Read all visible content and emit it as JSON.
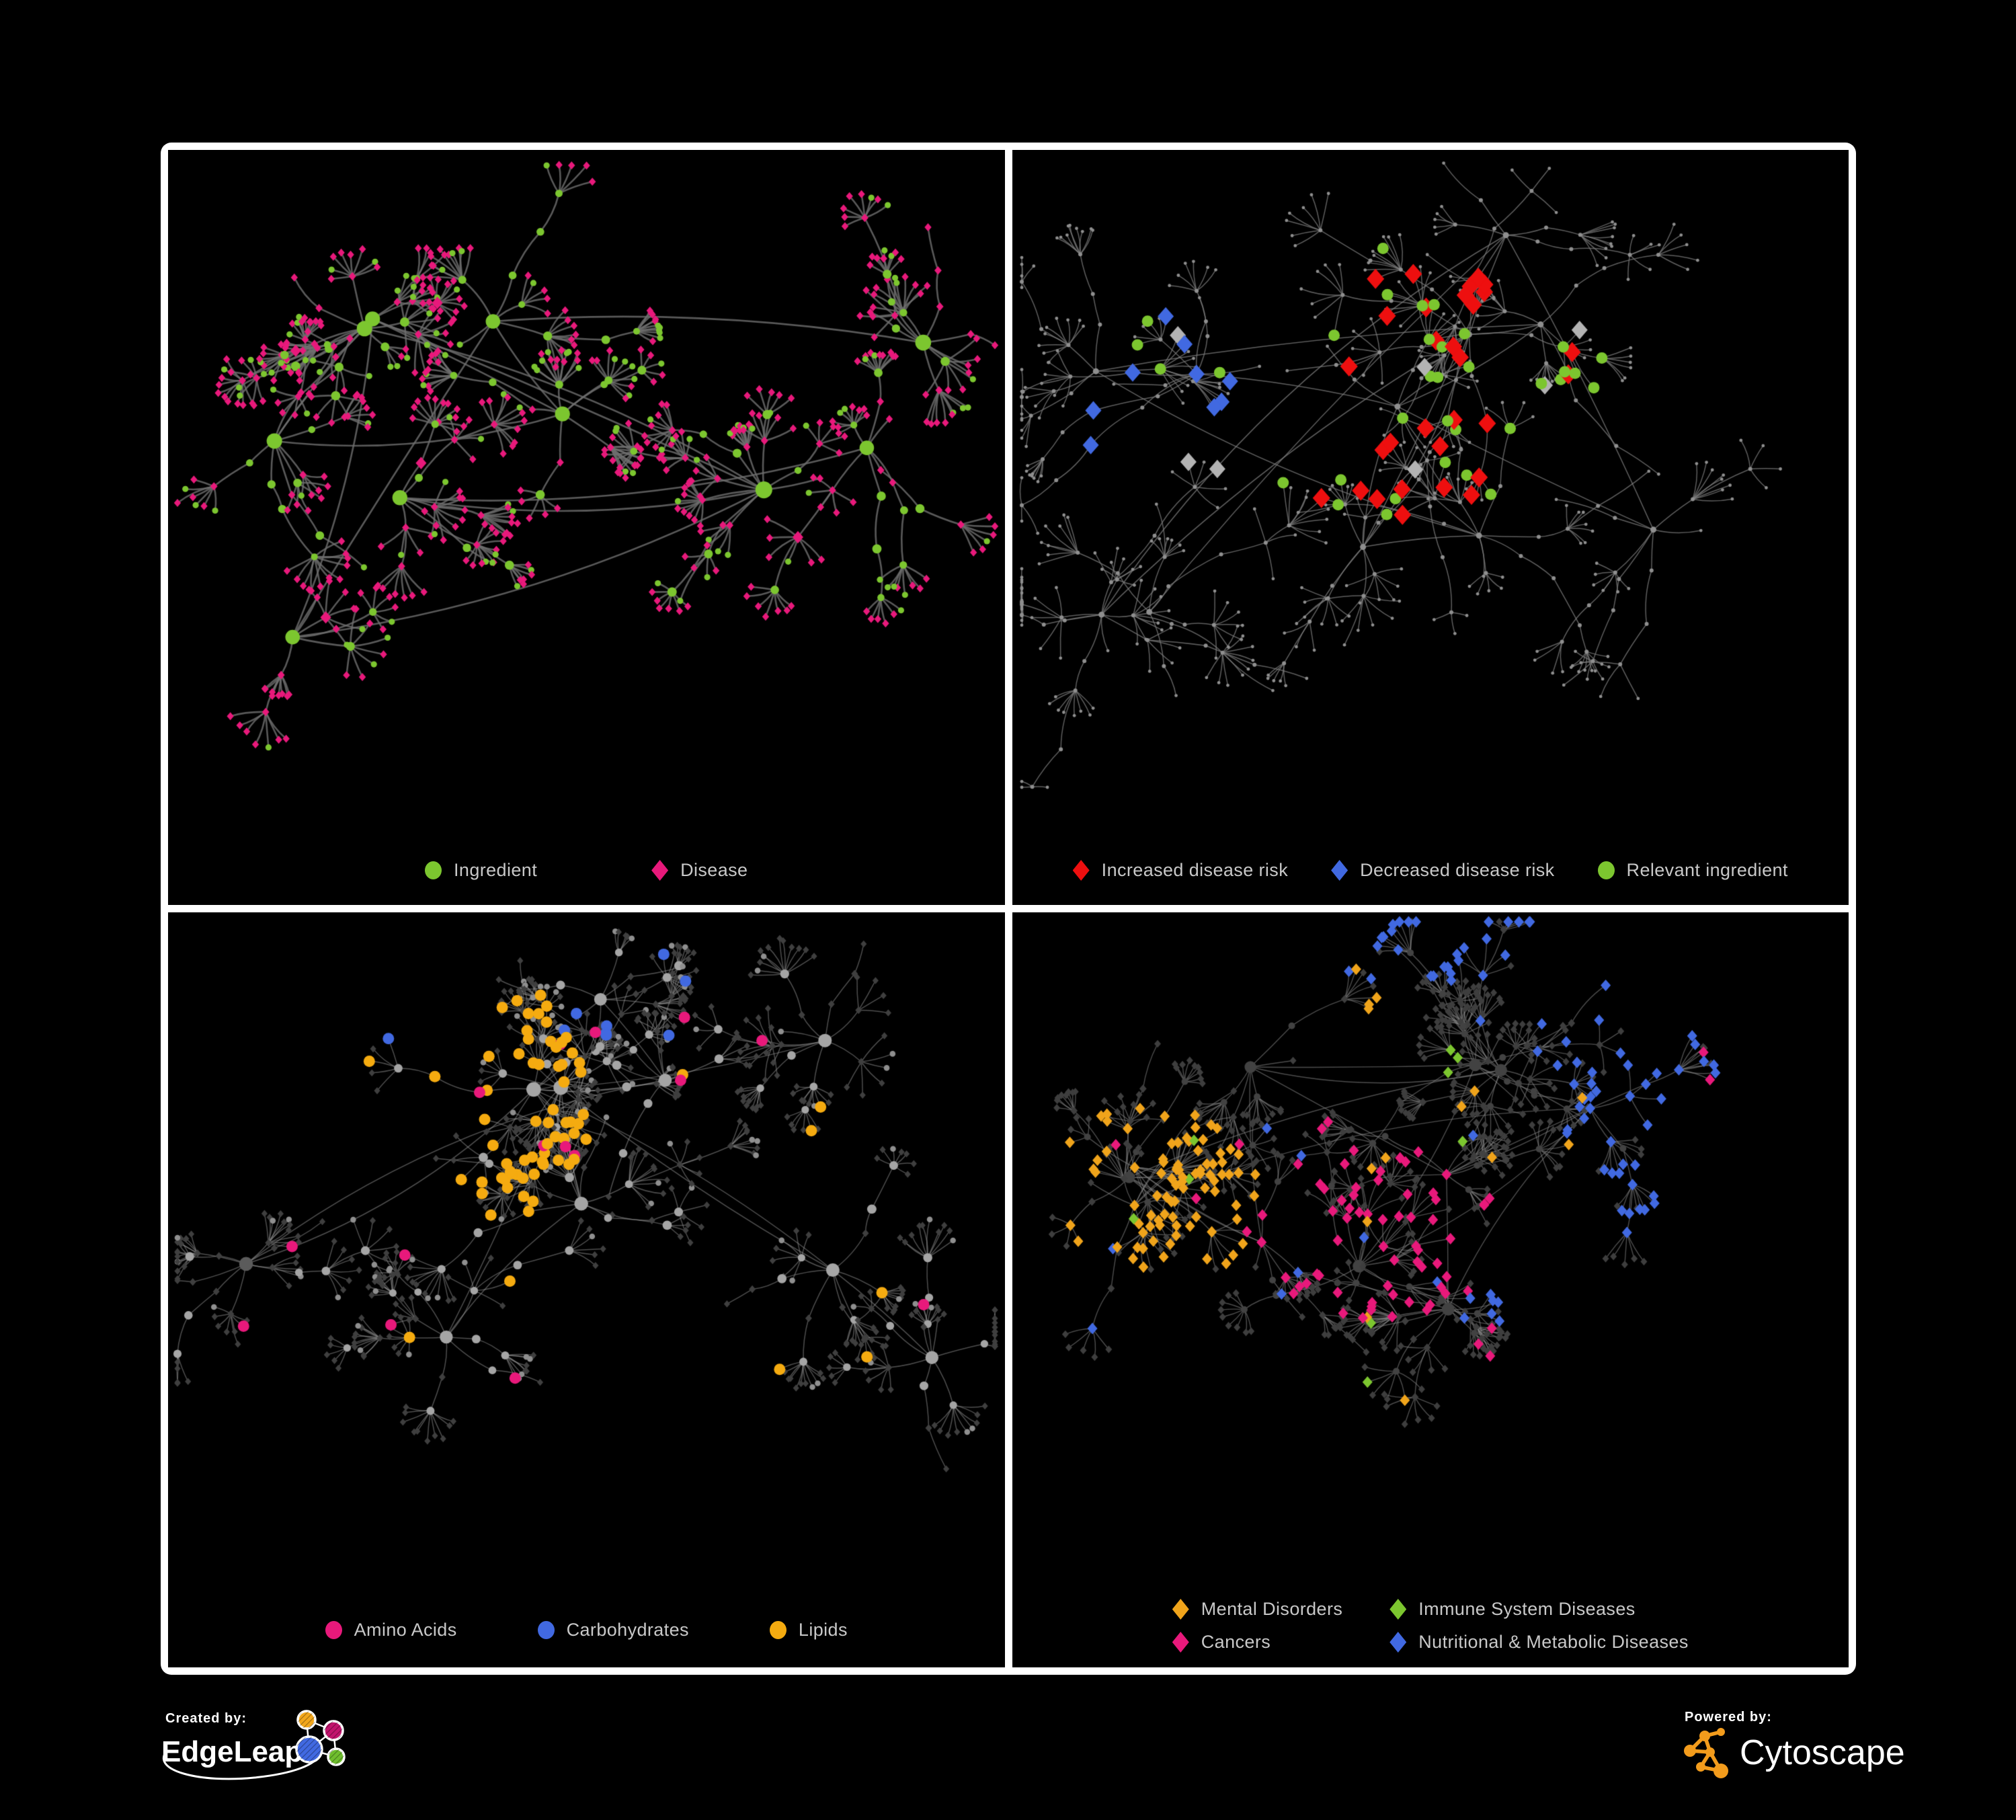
{
  "figure": {
    "background": "#000000",
    "frame_color": "#ffffff",
    "legend_text_color": "#c8c8c8"
  },
  "footer": {
    "created_by": {
      "label": "Created by:",
      "brand": "EdgeLeap",
      "icon_colors": {
        "orange": "#f2a71c",
        "magenta": "#c2146d",
        "blue": "#4169e1",
        "green": "#6fbe2e",
        "line": "#ffffff"
      }
    },
    "powered_by": {
      "label": "Powered by:",
      "brand": "Cytoscape",
      "accent": "#f39c1c"
    }
  },
  "panels": [
    {
      "id": "ingredient-disease-network",
      "legend": [
        {
          "label": "Ingredient",
          "shape": "circle",
          "color": "#7cc62f"
        },
        {
          "label": "Disease",
          "shape": "diamond",
          "color": "#e8197b"
        }
      ],
      "network": {
        "seed": 11,
        "clusters": 10,
        "extraLinks": 3,
        "branchMin": 5,
        "branchMax": 10,
        "stepMax": 3,
        "stepLen": 58,
        "fanPMid": 0.35,
        "fanPEnd": 0.75,
        "fanMin": 4,
        "fanMax": 11,
        "fanRad": 34,
        "edge": {
          "color": "#6f6f6f",
          "width": 2.6,
          "alpha": 0.8
        },
        "style": "p1",
        "colors": {
          "green": "#7cc62f",
          "pink": "#e8197b"
        },
        "highlights": []
      }
    },
    {
      "id": "disease-risk-network",
      "legend": [
        {
          "label": "Increased disease risk",
          "shape": "diamond",
          "color": "#ee0f0f"
        },
        {
          "label": "Decreased disease risk",
          "shape": "diamond",
          "color": "#4169e1"
        },
        {
          "label": "Relevant ingredient",
          "shape": "circle",
          "color": "#7cc62f"
        }
      ],
      "network": {
        "seed": 21,
        "clusters": 11,
        "extraLinks": 4,
        "branchMin": 5,
        "branchMax": 9,
        "stepMax": 4,
        "stepLen": 62,
        "fanPMid": 0.3,
        "fanPEnd": 0.7,
        "fanMin": 3,
        "fanMax": 9,
        "fanRad": 36,
        "edge": {
          "color": "#7e7e7e",
          "width": 1.5,
          "alpha": 0.75
        },
        "style": "p2",
        "colors": {
          "gray": "#8f8f8f"
        },
        "highlights": [
          {
            "shape": "circle",
            "color": "#7cc62f",
            "r": 8.5,
            "count": 34,
            "regions": [
              [
                0.45,
                0.36,
                0.3,
                0.22
              ],
              [
                0.2,
                0.3,
                0.1,
                0.1
              ]
            ]
          },
          {
            "shape": "diamond",
            "color": "#b3b3b3",
            "r": 12,
            "count": 7,
            "regions": [
              [
                0.45,
                0.42,
                0.3,
                0.25
              ]
            ]
          },
          {
            "shape": "diamond",
            "color": "#ee0f0f",
            "r": 13,
            "count": 30,
            "regions": [
              [
                0.5,
                0.38,
                0.2,
                0.22
              ],
              [
                0.78,
                0.72,
                0.08,
                0.1
              ]
            ]
          },
          {
            "shape": "diamond",
            "color": "#4169e1",
            "r": 12,
            "count": 9,
            "regions": [
              [
                0.17,
                0.38,
                0.1,
                0.13
              ],
              [
                0.83,
                0.27,
                0.05,
                0.05
              ]
            ]
          }
        ]
      }
    },
    {
      "id": "compound-class-network",
      "legend": [
        {
          "label": "Amino Acids",
          "shape": "circle",
          "color": "#e8197b"
        },
        {
          "label": "Carbohydrates",
          "shape": "circle",
          "color": "#4169e1"
        },
        {
          "label": "Lipids",
          "shape": "circle",
          "color": "#f5ab10"
        }
      ],
      "network": {
        "seed": 31,
        "clusters": 10,
        "extraLinks": 3,
        "branchMin": 5,
        "branchMax": 10,
        "stepMax": 3,
        "stepLen": 56,
        "fanPMid": 0.34,
        "fanPEnd": 0.72,
        "fanMin": 4,
        "fanMax": 11,
        "fanRad": 33,
        "edge": {
          "color": "#9b9b9b",
          "width": 1.5,
          "alpha": 0.5
        },
        "style": "p3",
        "colors": {
          "gray": "#a5a5a5",
          "gray2": "#8f8f8f",
          "darkCircle": "#5b5b5b",
          "dim": "#3f3f3f"
        },
        "highlights": [
          {
            "shape": "circle",
            "color": "#f5ab10",
            "r": 8.5,
            "count": 62,
            "regions": [
              [
                0.33,
                0.22,
                0.17,
                0.13
              ],
              [
                0.42,
                0.38,
                0.12,
                0.1
              ]
            ]
          },
          {
            "shape": "circle",
            "color": "#f5ab10",
            "r": 8.5,
            "count": 10,
            "regions": [
              [
                0.5,
                0.55,
                0.45,
                0.4
              ]
            ]
          },
          {
            "shape": "circle",
            "color": "#4169e1",
            "r": 8.5,
            "count": 9,
            "regions": [
              [
                0.45,
                0.12,
                0.3,
                0.1
              ],
              [
                0.62,
                0.52,
                0.06,
                0.06
              ]
            ]
          },
          {
            "shape": "circle",
            "color": "#e8197b",
            "r": 8.5,
            "count": 15,
            "regions": [
              [
                0.5,
                0.55,
                0.45,
                0.4
              ]
            ]
          }
        ]
      }
    },
    {
      "id": "disease-class-network",
      "legend": [
        {
          "label": "Mental Disorders",
          "shape": "diamond",
          "color": "#f0a41b"
        },
        {
          "label": "Immune System Diseases",
          "shape": "diamond",
          "color": "#7cc62f"
        },
        {
          "label": "Cancers",
          "shape": "diamond",
          "color": "#e8197b"
        },
        {
          "label": "Nutritional & Metabolic Diseases",
          "shape": "diamond",
          "color": "#4169e1"
        }
      ],
      "network": {
        "seed": 41,
        "clusters": 11,
        "extraLinks": 4,
        "branchMin": 5,
        "branchMax": 10,
        "stepMax": 3,
        "stepLen": 58,
        "fanPMid": 0.34,
        "fanPEnd": 0.72,
        "fanMin": 4,
        "fanMax": 10,
        "fanRad": 34,
        "edge": {
          "color": "#8d8d8d",
          "width": 1.4,
          "alpha": 0.55
        },
        "style": "p4",
        "colors": {
          "dimc": "#424242",
          "dim": "#3e3e3e"
        },
        "highlights": [
          {
            "shape": "diamond",
            "color": "#f0a41b",
            "r": 7.5,
            "count": 90,
            "regions": [
              [
                0.17,
                0.45,
                0.13,
                0.15
              ],
              [
                0.3,
                0.12,
                0.15,
                0.1
              ]
            ]
          },
          {
            "shape": "diamond",
            "color": "#f0a41b",
            "r": 7.5,
            "count": 10,
            "regions": [
              [
                0.5,
                0.6,
                0.45,
                0.38
              ]
            ]
          },
          {
            "shape": "diamond",
            "color": "#e8197b",
            "r": 7.5,
            "count": 65,
            "regions": [
              [
                0.44,
                0.5,
                0.16,
                0.14
              ],
              [
                0.88,
                0.25,
                0.07,
                0.08
              ]
            ]
          },
          {
            "shape": "diamond",
            "color": "#e8197b",
            "r": 7.5,
            "count": 8,
            "regions": [
              [
                0.5,
                0.55,
                0.45,
                0.4
              ]
            ]
          },
          {
            "shape": "diamond",
            "color": "#4169e1",
            "r": 7.5,
            "count": 75,
            "regions": [
              [
                0.63,
                0.57,
                0.09,
                0.09
              ],
              [
                0.77,
                0.3,
                0.12,
                0.22
              ],
              [
                0.55,
                0.05,
                0.3,
                0.06
              ]
            ]
          },
          {
            "shape": "diamond",
            "color": "#4169e1",
            "r": 7.5,
            "count": 15,
            "regions": [
              [
                0.5,
                0.55,
                0.45,
                0.4
              ]
            ]
          },
          {
            "shape": "diamond",
            "color": "#7cc62f",
            "r": 7.5,
            "count": 9,
            "regions": [
              [
                0.5,
                0.45,
                0.4,
                0.4
              ]
            ]
          }
        ]
      }
    }
  ]
}
